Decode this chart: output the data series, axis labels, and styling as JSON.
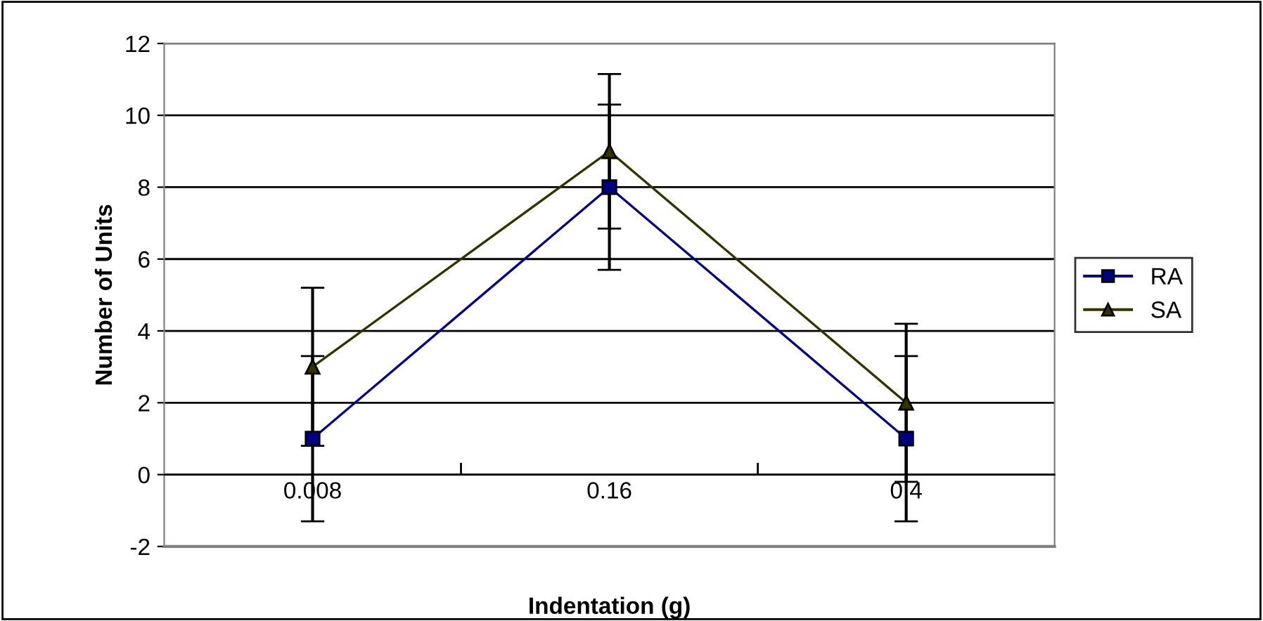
{
  "chart_data": {
    "type": "line",
    "xlabel": "Indentation (g)",
    "ylabel": "Number of Units",
    "categories": [
      "0.008",
      "0.16",
      "0.4"
    ],
    "series": [
      {
        "name": "RA",
        "color": "#000080",
        "values": [
          1,
          8,
          1
        ],
        "errors": [
          2.3,
          2.3,
          2.3
        ],
        "marker": "square"
      },
      {
        "name": "SA",
        "color": "#333300",
        "values": [
          3,
          9,
          2
        ],
        "errors": [
          2.2,
          2.15,
          2.2
        ],
        "marker": "triangle"
      }
    ],
    "ylim": [
      -2,
      12
    ],
    "yticks": [
      -2,
      0,
      2,
      4,
      6,
      8,
      10,
      12
    ],
    "grid": "y",
    "legend": "right"
  }
}
